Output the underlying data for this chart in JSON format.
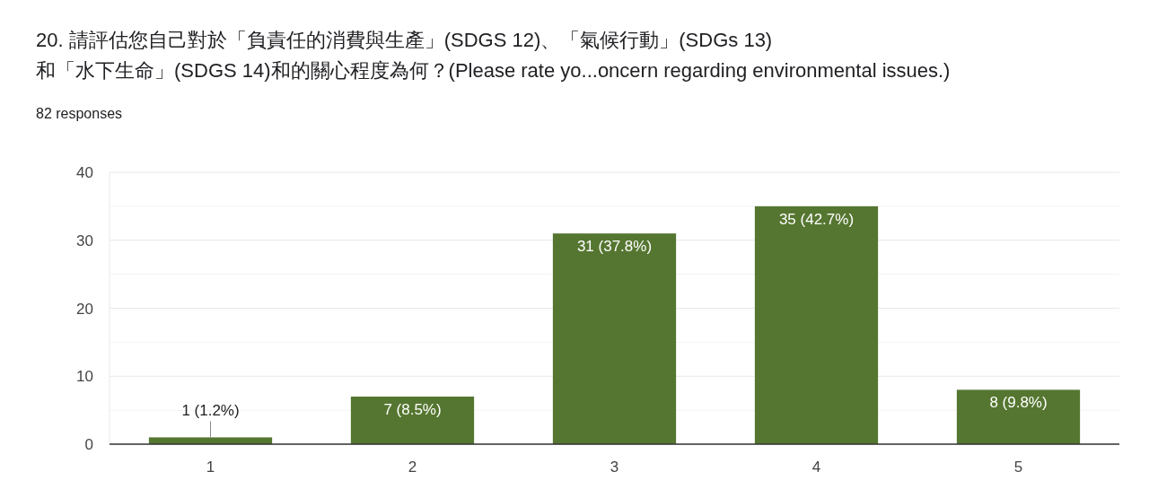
{
  "chart_data": {
    "type": "bar",
    "title": "20. 請評估您自己對於「負責任的消費與生產」(SDGS 12)、「氣候行動」(SDGs 13)\n和「水下生命」(SDGS 14)和的關心程度為何？(Please rate yo...oncern regarding environmental issues.)",
    "subtitle": "82 responses",
    "categories": [
      "1",
      "2",
      "3",
      "4",
      "5"
    ],
    "values": [
      1,
      7,
      31,
      35,
      8
    ],
    "color": "#557630",
    "value_labels": [
      "1 (1.2%)",
      "7 (8.5%)",
      "31 (37.8%)",
      "35 (42.7%)",
      "8 (9.8%)"
    ],
    "ylim": [
      0,
      40
    ],
    "yticks": [
      0,
      {
        "value": 5,
        "label": null
      },
      10,
      {
        "value": 15,
        "label": null
      },
      20,
      {
        "value": 25,
        "label": null
      },
      30,
      {
        "value": 35,
        "label": null
      },
      40
    ],
    "grid": "y"
  }
}
